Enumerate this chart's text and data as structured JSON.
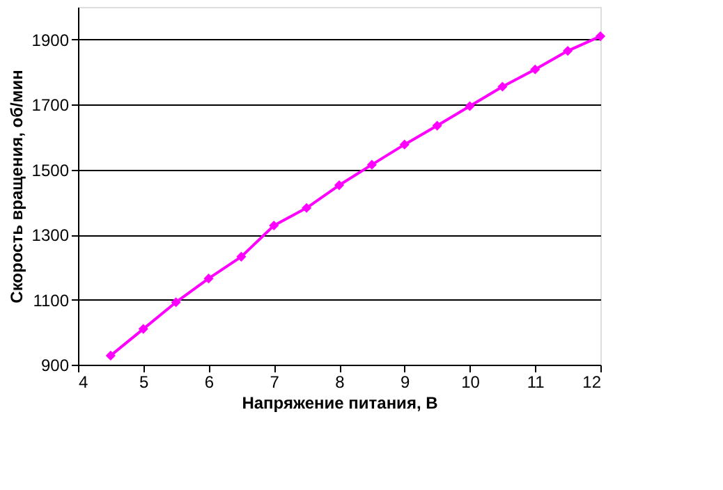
{
  "chart_data": {
    "type": "line",
    "xlabel": "Напряжение питания, В",
    "ylabel": "Скорость вращения, об/мин",
    "x": [
      4.5,
      5,
      5.5,
      6,
      6.5,
      7,
      7.5,
      8,
      8.5,
      9,
      9.5,
      10,
      10.5,
      11,
      11.5,
      12
    ],
    "series": [
      {
        "color": "#ff00ff",
        "values": [
          928,
          1010,
          1092,
          1165,
          1232,
          1328,
          1382,
          1452,
          1515,
          1577,
          1635,
          1695,
          1755,
          1808,
          1865,
          1910
        ]
      }
    ],
    "xlim": [
      4,
      12
    ],
    "xticks": [
      4,
      5,
      6,
      7,
      8,
      9,
      10,
      11,
      12
    ],
    "ylim": [
      900,
      2000
    ],
    "yticks": [
      900,
      1100,
      1300,
      1500,
      1700,
      1900
    ],
    "grid": "y",
    "marker": "diamond",
    "line_style": "solid"
  }
}
